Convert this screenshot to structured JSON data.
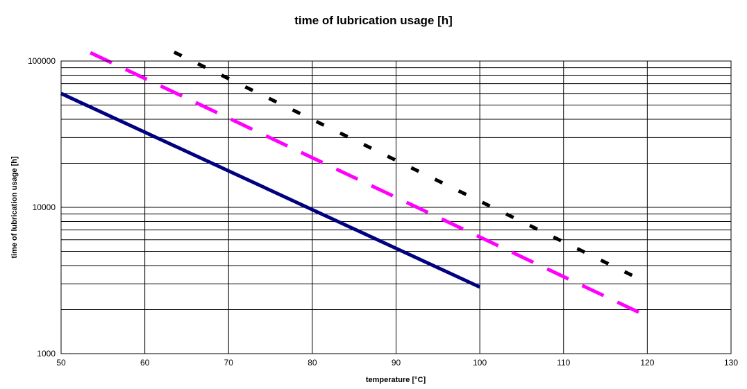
{
  "chart_data": {
    "type": "line",
    "title": "time of lubrication usage [h]",
    "xlabel": "temperature [°C]",
    "ylabel": "time of lubrication usage [h]",
    "xlim": [
      50,
      130
    ],
    "ylim": [
      1000,
      100000
    ],
    "y_scale": "log",
    "grid": true,
    "legend": "none",
    "x_ticks": [
      "50",
      "60",
      "70",
      "80",
      "90",
      "100",
      "110",
      "120",
      "130"
    ],
    "y_ticks": [
      "1000",
      "10000",
      "100000"
    ],
    "series": [
      {
        "color": "#000080",
        "style": "solid",
        "x": [
          50,
          100
        ],
        "y": [
          60000,
          2850
        ]
      },
      {
        "color": "#ff00ff",
        "style": "dashed",
        "x": [
          53.5,
          120
        ],
        "y": [
          114000,
          1800
        ]
      },
      {
        "color": "#000000",
        "style": "dotted",
        "x": [
          63.5,
          120
        ],
        "y": [
          115000,
          3050
        ]
      }
    ]
  }
}
